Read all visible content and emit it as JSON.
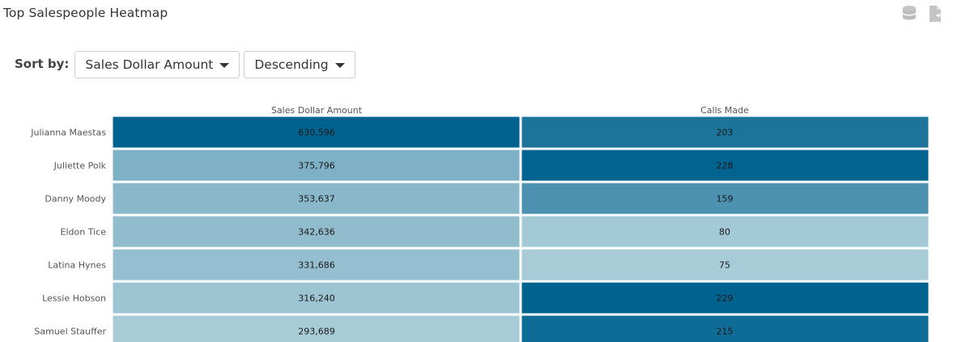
{
  "header": {
    "title": "Top Salespeople Heatmap",
    "icons": [
      "database-icon",
      "export-document-icon"
    ]
  },
  "controls": {
    "sort_label": "Sort by:",
    "sort_field": "Sales Dollar Amount",
    "sort_order": "Descending"
  },
  "colors": {
    "low": "#a8cbd8",
    "high": "#00628f",
    "cell_text": "#1a1a1a",
    "header_text": "#555555"
  },
  "chart_data": {
    "type": "heatmap",
    "columns": [
      "Sales Dollar Amount",
      "Calls Made"
    ],
    "rows": [
      "Julianna Maestas",
      "Juliette Polk",
      "Danny Moody",
      "Eldon Tice",
      "Latina Hynes",
      "Lessie Hobson",
      "Samuel Stauffer"
    ],
    "values": [
      [
        630596,
        203
      ],
      [
        375796,
        228
      ],
      [
        353637,
        159
      ],
      [
        342636,
        80
      ],
      [
        331686,
        75
      ],
      [
        316240,
        229
      ],
      [
        293689,
        215
      ]
    ],
    "display_values": [
      [
        "630,596",
        "203"
      ],
      [
        "375,796",
        "228"
      ],
      [
        "353,637",
        "159"
      ],
      [
        "342,636",
        "80"
      ],
      [
        "331,686",
        "75"
      ],
      [
        "316,240",
        "229"
      ],
      [
        "293,689",
        "215"
      ]
    ]
  }
}
